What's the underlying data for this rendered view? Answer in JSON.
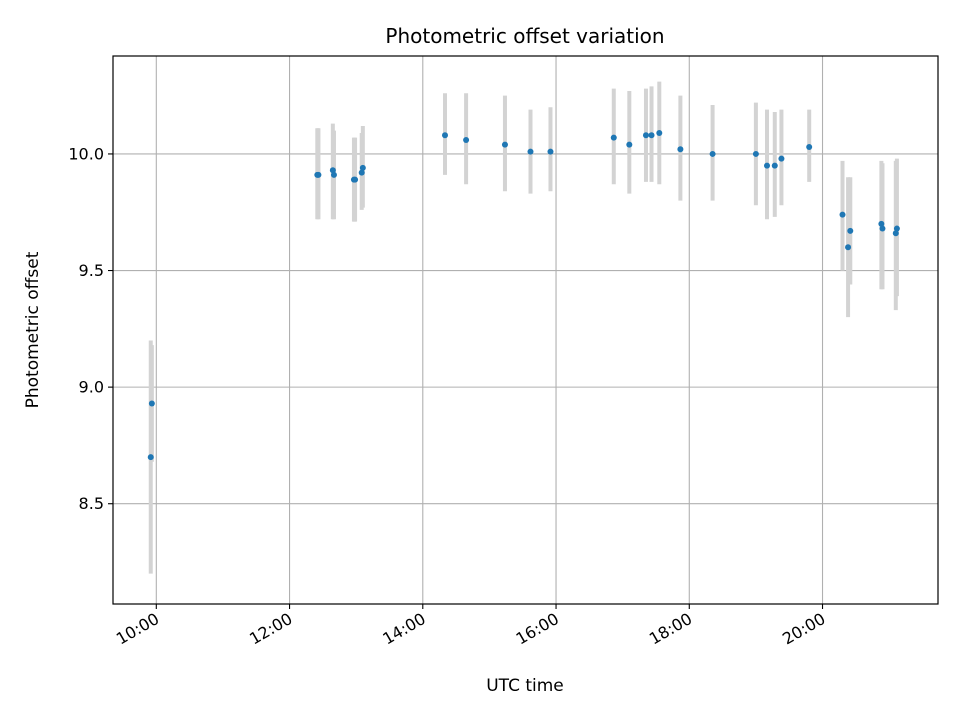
{
  "chart_data": {
    "type": "scatter",
    "title": "Photometric offset variation",
    "xlabel": "UTC time",
    "ylabel": "Photometric offset",
    "x_ticks": [
      "10:00",
      "12:00",
      "14:00",
      "16:00",
      "18:00",
      "20:00"
    ],
    "y_ticks": [
      "8.5",
      "9.0",
      "9.5",
      "10.0"
    ],
    "xlim": [
      "09:21",
      "21:44"
    ],
    "ylim": [
      8.07,
      10.42
    ],
    "grid": true,
    "colors": {
      "point": "#1f77b4",
      "errorbar": "#d3d3d3",
      "grid": "#b0b0b0"
    },
    "points": [
      {
        "x": "09:55",
        "y": 8.7,
        "ylow": 8.2,
        "yhigh": 9.2
      },
      {
        "x": "09:56",
        "y": 8.93,
        "ylow": 8.68,
        "yhigh": 9.18
      },
      {
        "x": "12:25",
        "y": 9.91,
        "ylow": 9.72,
        "yhigh": 10.11
      },
      {
        "x": "12:26",
        "y": 9.91,
        "ylow": 9.72,
        "yhigh": 10.11
      },
      {
        "x": "12:39",
        "y": 9.93,
        "ylow": 9.72,
        "yhigh": 10.13
      },
      {
        "x": "12:40",
        "y": 9.91,
        "ylow": 9.72,
        "yhigh": 10.1
      },
      {
        "x": "12:58",
        "y": 9.89,
        "ylow": 9.71,
        "yhigh": 10.07
      },
      {
        "x": "12:59",
        "y": 9.89,
        "ylow": 9.71,
        "yhigh": 10.07
      },
      {
        "x": "13:05",
        "y": 9.92,
        "ylow": 9.76,
        "yhigh": 10.09
      },
      {
        "x": "13:06",
        "y": 9.94,
        "ylow": 9.77,
        "yhigh": 10.12
      },
      {
        "x": "14:20",
        "y": 10.08,
        "ylow": 9.91,
        "yhigh": 10.26
      },
      {
        "x": "14:39",
        "y": 10.06,
        "ylow": 9.87,
        "yhigh": 10.26
      },
      {
        "x": "15:14",
        "y": 10.04,
        "ylow": 9.84,
        "yhigh": 10.25
      },
      {
        "x": "15:37",
        "y": 10.01,
        "ylow": 9.83,
        "yhigh": 10.19
      },
      {
        "x": "15:55",
        "y": 10.01,
        "ylow": 9.84,
        "yhigh": 10.2
      },
      {
        "x": "16:52",
        "y": 10.07,
        "ylow": 9.87,
        "yhigh": 10.28
      },
      {
        "x": "17:06",
        "y": 10.04,
        "ylow": 9.83,
        "yhigh": 10.27
      },
      {
        "x": "17:21",
        "y": 10.08,
        "ylow": 9.88,
        "yhigh": 10.28
      },
      {
        "x": "17:26",
        "y": 10.08,
        "ylow": 9.88,
        "yhigh": 10.29
      },
      {
        "x": "17:33",
        "y": 10.09,
        "ylow": 9.87,
        "yhigh": 10.31
      },
      {
        "x": "17:52",
        "y": 10.02,
        "ylow": 9.8,
        "yhigh": 10.25
      },
      {
        "x": "18:21",
        "y": 10.0,
        "ylow": 9.8,
        "yhigh": 10.21
      },
      {
        "x": "19:00",
        "y": 10.0,
        "ylow": 9.78,
        "yhigh": 10.22
      },
      {
        "x": "19:10",
        "y": 9.95,
        "ylow": 9.72,
        "yhigh": 10.19
      },
      {
        "x": "19:17",
        "y": 9.95,
        "ylow": 9.73,
        "yhigh": 10.18
      },
      {
        "x": "19:23",
        "y": 9.98,
        "ylow": 9.78,
        "yhigh": 10.19
      },
      {
        "x": "19:48",
        "y": 10.03,
        "ylow": 9.88,
        "yhigh": 10.19
      },
      {
        "x": "20:18",
        "y": 9.74,
        "ylow": 9.5,
        "yhigh": 9.97
      },
      {
        "x": "20:23",
        "y": 9.6,
        "ylow": 9.3,
        "yhigh": 9.9
      },
      {
        "x": "20:25",
        "y": 9.67,
        "ylow": 9.44,
        "yhigh": 9.9
      },
      {
        "x": "20:53",
        "y": 9.7,
        "ylow": 9.42,
        "yhigh": 9.97
      },
      {
        "x": "20:54",
        "y": 9.68,
        "ylow": 9.42,
        "yhigh": 9.96
      },
      {
        "x": "21:06",
        "y": 9.66,
        "ylow": 9.33,
        "yhigh": 9.97
      },
      {
        "x": "21:07",
        "y": 9.68,
        "ylow": 9.39,
        "yhigh": 9.98
      }
    ]
  }
}
